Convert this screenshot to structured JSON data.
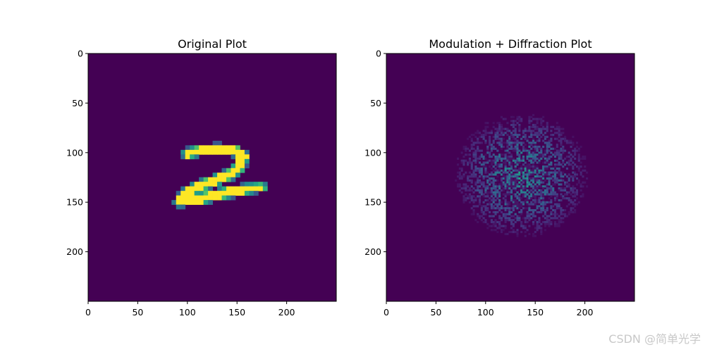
{
  "watermark": "CSDN @简单光学",
  "colormap": {
    "name": "viridis",
    "low": "#440154",
    "high": "#fde725"
  },
  "chart_data": [
    {
      "type": "heatmap",
      "title": "Original Plot",
      "xlim": [
        0,
        250
      ],
      "ylim": [
        250,
        0
      ],
      "xticks": [
        0,
        50,
        100,
        150,
        200
      ],
      "yticks": [
        0,
        50,
        100,
        150,
        200
      ],
      "grid": false,
      "background_value": 0,
      "content": "handwritten digit 2",
      "strokes": [
        {
          "from": [
            100,
            101
          ],
          "to": [
            112,
            98
          ],
          "w": 3.5
        },
        {
          "from": [
            112,
            98
          ],
          "to": [
            130,
            96
          ],
          "w": 3.5
        },
        {
          "from": [
            130,
            96
          ],
          "to": [
            148,
            98
          ],
          "w": 3.5
        },
        {
          "from": [
            148,
            98
          ],
          "to": [
            156,
            104
          ],
          "w": 4
        },
        {
          "from": [
            156,
            104
          ],
          "to": [
            153,
            114
          ],
          "w": 4
        },
        {
          "from": [
            153,
            114
          ],
          "to": [
            143,
            122
          ],
          "w": 4
        },
        {
          "from": [
            143,
            122
          ],
          "to": [
            128,
            128
          ],
          "w": 4
        },
        {
          "from": [
            128,
            128
          ],
          "to": [
            112,
            134
          ],
          "w": 4
        },
        {
          "from": [
            112,
            134
          ],
          "to": [
            100,
            140
          ],
          "w": 4
        },
        {
          "from": [
            100,
            140
          ],
          "to": [
            92,
            149
          ],
          "w": 4
        },
        {
          "from": [
            92,
            149
          ],
          "to": [
            110,
            147
          ],
          "w": 4
        },
        {
          "from": [
            110,
            147
          ],
          "to": [
            128,
            143
          ],
          "w": 4
        },
        {
          "from": [
            128,
            143
          ],
          "to": [
            146,
            139
          ],
          "w": 4
        },
        {
          "from": [
            146,
            139
          ],
          "to": [
            164,
            136
          ],
          "w": 3.5
        },
        {
          "from": [
            164,
            136
          ],
          "to": [
            175,
            135
          ],
          "w": 3
        }
      ]
    },
    {
      "type": "heatmap",
      "title": "Modulation + Diffraction Plot",
      "xlim": [
        0,
        250
      ],
      "ylim": [
        250,
        0
      ],
      "xticks": [
        0,
        50,
        100,
        150,
        200
      ],
      "yticks": [
        0,
        50,
        100,
        150,
        200
      ],
      "grid": false,
      "background_value": 0,
      "content": "speckle diffraction pattern",
      "pattern_center": [
        135,
        122
      ],
      "pattern_radius": [
        70,
        65
      ],
      "peak_value": 0.6
    }
  ]
}
